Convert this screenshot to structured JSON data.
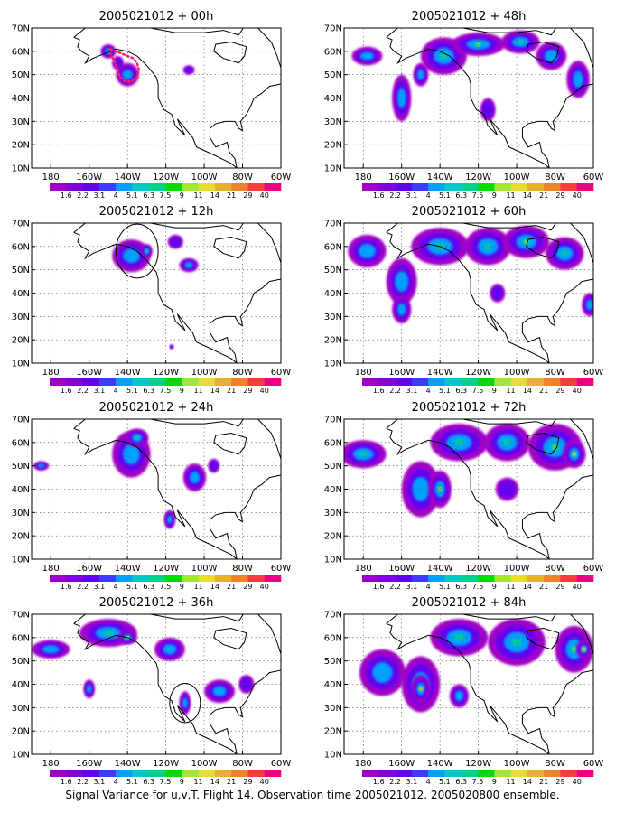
{
  "caption": "Signal Variance for u,v,T. Flight 14. Observation time 2005021012. 2005020800 ensemble.",
  "map": {
    "lat_labels": [
      "10N",
      "20N",
      "30N",
      "40N",
      "50N",
      "60N",
      "70N"
    ],
    "lat_values": [
      10,
      20,
      30,
      40,
      50,
      60,
      70
    ],
    "lon_labels": [
      "180",
      "160W",
      "140W",
      "120W",
      "100W",
      "80W",
      "60W"
    ],
    "lon_values": [
      -180,
      -160,
      -140,
      -120,
      -100,
      -80,
      -60
    ],
    "lon_range": [
      -190,
      -60
    ],
    "lat_range": [
      10,
      70
    ],
    "grid": "dotted"
  },
  "colorbar": {
    "labels": [
      "1.6",
      "2.2",
      "3.1",
      "4",
      "5.1",
      "6.3",
      "7.5",
      "9",
      "11",
      "14",
      "21",
      "29",
      "40"
    ],
    "colors": [
      "#a000c8",
      "#8200dc",
      "#6400f0",
      "#3c3cff",
      "#00a0ff",
      "#00c8c8",
      "#00d28c",
      "#00dc00",
      "#a0e632",
      "#e6dc32",
      "#e6af2d",
      "#f08228",
      "#fa3c3c",
      "#f00082"
    ]
  },
  "panels": [
    {
      "title": "2005021012 + 00h",
      "col": 0,
      "row": 0,
      "blobs": [
        [
          -150,
          60,
          4,
          3,
          2
        ],
        [
          -140,
          50,
          6,
          5,
          2
        ],
        [
          -108,
          52,
          3,
          2,
          1
        ],
        [
          -145,
          55,
          3,
          3,
          1
        ]
      ],
      "flight_track": [
        [
          -149,
          61
        ],
        [
          -146,
          60
        ],
        [
          -143,
          59
        ],
        [
          -140,
          58
        ],
        [
          -137,
          57
        ],
        [
          -135,
          55
        ],
        [
          -134,
          52
        ],
        [
          -135,
          49
        ],
        [
          -138,
          47
        ],
        [
          -141,
          47
        ],
        [
          -144,
          49
        ],
        [
          -145,
          52
        ],
        [
          -147,
          56
        ],
        [
          -149,
          59
        ]
      ],
      "circle": null
    },
    {
      "title": "2005021012 + 48h",
      "col": 1,
      "row": 0,
      "blobs": [
        [
          -178,
          58,
          8,
          4,
          2
        ],
        [
          -160,
          40,
          5,
          10,
          2
        ],
        [
          -138,
          58,
          12,
          8,
          3
        ],
        [
          -120,
          63,
          14,
          5,
          4
        ],
        [
          -98,
          64,
          10,
          5,
          3
        ],
        [
          -82,
          58,
          8,
          6,
          2
        ],
        [
          -68,
          48,
          6,
          8,
          2
        ],
        [
          -115,
          35,
          4,
          5,
          1
        ],
        [
          -150,
          50,
          4,
          5,
          2
        ]
      ],
      "flight_track": null,
      "circle": null
    },
    {
      "title": "2005021012 + 12h",
      "col": 0,
      "row": 1,
      "blobs": [
        [
          -138,
          56,
          10,
          7,
          2
        ],
        [
          -130,
          58,
          3,
          3,
          3
        ],
        [
          -108,
          52,
          5,
          3,
          2
        ],
        [
          -115,
          62,
          4,
          3,
          1
        ],
        [
          -117,
          17,
          1,
          1,
          1
        ]
      ],
      "flight_track": null,
      "circle": [
        -135,
        58,
        11
      ]
    },
    {
      "title": "2005021012 + 60h",
      "col": 1,
      "row": 1,
      "blobs": [
        [
          -178,
          58,
          10,
          7,
          2
        ],
        [
          -160,
          45,
          8,
          10,
          2
        ],
        [
          -140,
          60,
          15,
          8,
          3
        ],
        [
          -115,
          60,
          12,
          8,
          3
        ],
        [
          -95,
          62,
          12,
          7,
          4
        ],
        [
          -75,
          57,
          10,
          7,
          3
        ],
        [
          -62,
          35,
          4,
          5,
          2
        ],
        [
          -110,
          40,
          4,
          4,
          1
        ],
        [
          -160,
          33,
          5,
          6,
          2
        ]
      ],
      "flight_track": null,
      "circle": null
    },
    {
      "title": "2005021012 + 24h",
      "col": 0,
      "row": 2,
      "blobs": [
        [
          -185,
          50,
          4,
          2,
          2
        ],
        [
          -138,
          55,
          10,
          10,
          2
        ],
        [
          -135,
          62,
          6,
          4,
          3
        ],
        [
          -105,
          45,
          6,
          6,
          2
        ],
        [
          -95,
          50,
          3,
          3,
          1
        ],
        [
          -118,
          27,
          3,
          4,
          2
        ]
      ],
      "flight_track": null,
      "circle": null
    },
    {
      "title": "2005021012 + 72h",
      "col": 1,
      "row": 2,
      "blobs": [
        [
          -180,
          55,
          12,
          6,
          3
        ],
        [
          -150,
          40,
          10,
          12,
          2
        ],
        [
          -140,
          40,
          6,
          8,
          4
        ],
        [
          -130,
          60,
          15,
          8,
          3
        ],
        [
          -105,
          60,
          12,
          8,
          3
        ],
        [
          -80,
          58,
          14,
          10,
          4
        ],
        [
          -70,
          55,
          6,
          6,
          5
        ],
        [
          -105,
          40,
          6,
          5,
          1
        ]
      ],
      "flight_track": null,
      "circle": null
    },
    {
      "title": "2005021012 + 36h",
      "col": 0,
      "row": 3,
      "blobs": [
        [
          -180,
          55,
          10,
          4,
          2
        ],
        [
          -150,
          62,
          15,
          6,
          3
        ],
        [
          -140,
          60,
          5,
          3,
          4
        ],
        [
          -118,
          55,
          8,
          5,
          2
        ],
        [
          -160,
          38,
          3,
          4,
          2
        ],
        [
          -110,
          32,
          3,
          5,
          2
        ],
        [
          -92,
          37,
          8,
          5,
          2
        ],
        [
          -78,
          40,
          4,
          4,
          1
        ]
      ],
      "flight_track": null,
      "circle": [
        -110,
        32,
        8
      ]
    },
    {
      "title": "2005021012 + 84h",
      "col": 1,
      "row": 3,
      "blobs": [
        [
          -170,
          45,
          12,
          10,
          2
        ],
        [
          -150,
          40,
          10,
          12,
          3
        ],
        [
          -150,
          38,
          5,
          6,
          5
        ],
        [
          -130,
          60,
          15,
          8,
          3
        ],
        [
          -100,
          58,
          15,
          10,
          3
        ],
        [
          -70,
          55,
          10,
          10,
          4
        ],
        [
          -65,
          55,
          4,
          4,
          5
        ],
        [
          -130,
          35,
          5,
          5,
          2
        ]
      ],
      "flight_track": null,
      "circle": null
    }
  ],
  "layout": {
    "col_x0": [
      35,
      381
    ],
    "row_y0": [
      31,
      247,
      464,
      680
    ],
    "plot_w": 276,
    "plot_h": 155
  }
}
